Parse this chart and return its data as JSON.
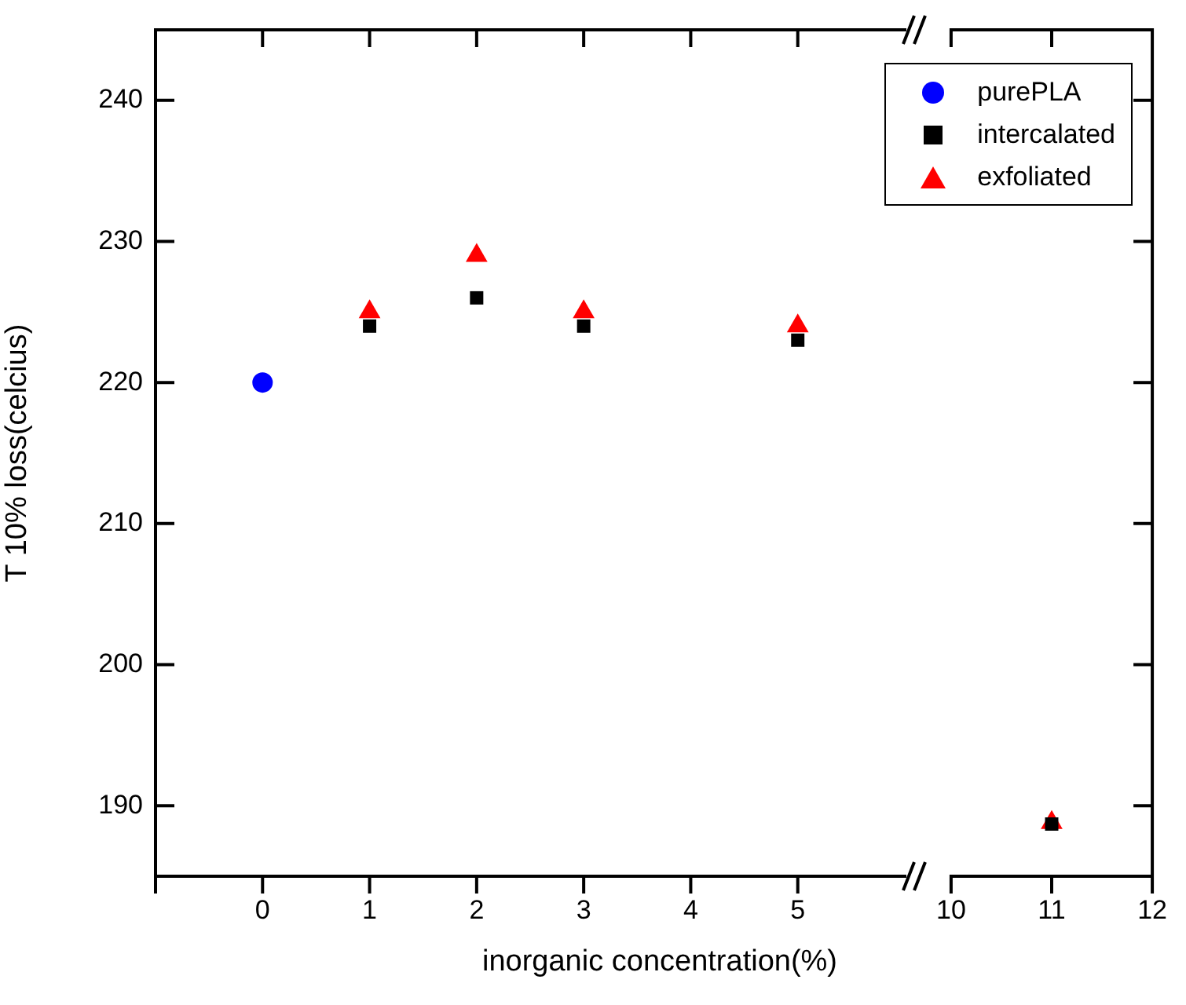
{
  "chart_data": [
    {
      "type": "scatter",
      "xlabel": "inorganic concentration(%)",
      "ylabel": "T 10% loss(celcius)",
      "x": [
        0,
        1,
        2,
        3,
        5
      ],
      "series": [
        {
          "name": "purePLA",
          "color": "#0000ff",
          "marker": "circle",
          "values": [
            220,
            null,
            null,
            null,
            null
          ]
        },
        {
          "name": "intercalated",
          "color": "#000000",
          "marker": "square",
          "values": [
            null,
            224,
            226,
            224,
            223
          ]
        },
        {
          "name": "exfoliated",
          "color": "#ff0000",
          "marker": "triangle",
          "values": [
            null,
            225,
            229,
            225,
            224
          ]
        }
      ],
      "xlim": [
        -1,
        6
      ],
      "xticks": [
        {
          "value": -1,
          "label": null
        },
        0,
        1,
        2,
        3,
        4,
        5
      ],
      "ylim": [
        185,
        245
      ],
      "yticks": [
        190,
        200,
        210,
        220,
        230,
        240
      ],
      "legend": "top right"
    },
    {
      "type": "scatter",
      "x": [
        11
      ],
      "series": [
        {
          "color": "#000000",
          "marker": "square",
          "values": [
            188.7
          ]
        },
        {
          "color": "#ff0000",
          "marker": "triangle",
          "values": [
            188.8
          ]
        }
      ],
      "xlim": [
        10,
        12
      ],
      "xticks": [
        10,
        11,
        12
      ],
      "ylim": [
        185,
        245
      ],
      "yticks": [
        190,
        200,
        210,
        220,
        230,
        240
      ],
      "tick_labels": "x"
    }
  ]
}
